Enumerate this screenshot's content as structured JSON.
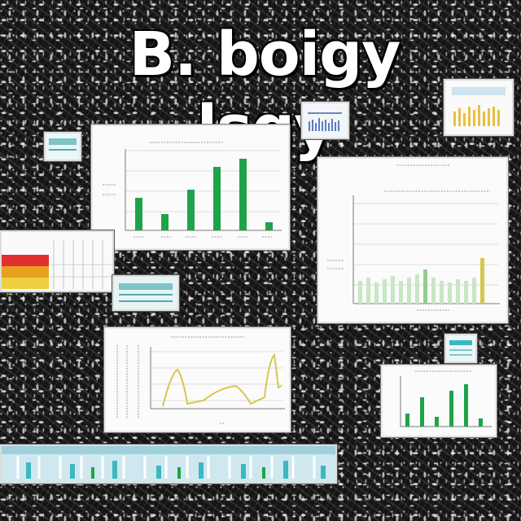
{
  "poster": {
    "title": "B. boigy lsgy"
  },
  "colors": {
    "green": "#1fa34a",
    "yellow": "#d8c64a",
    "orange": "#e8a020",
    "red": "#e03030",
    "cyan": "#3cb8c0",
    "ink": "#151515"
  },
  "panels": {
    "bar_chart_top": {
      "kind": "bar",
      "color_key": "green"
    },
    "bar_chart_right": {
      "kind": "bar",
      "color_key": "green"
    },
    "line_chart": {
      "kind": "line",
      "color_key": "yellow"
    },
    "bar_chart_bottom_right": {
      "kind": "bar",
      "color_key": "green"
    }
  },
  "thumbnails": [
    {
      "name": "thumb-blue-strip",
      "color_key": "cyan"
    },
    {
      "name": "thumb-yellow-bars",
      "color_key": "yellow"
    },
    {
      "name": "thumb-colored-area",
      "color_key": "red"
    },
    {
      "name": "thumb-cyan-table",
      "color_key": "cyan"
    },
    {
      "name": "thumb-small-cyan",
      "color_key": "cyan"
    },
    {
      "name": "thumb-left-cyan",
      "color_key": "cyan"
    },
    {
      "name": "banner-strip",
      "color_key": "cyan"
    }
  ]
}
